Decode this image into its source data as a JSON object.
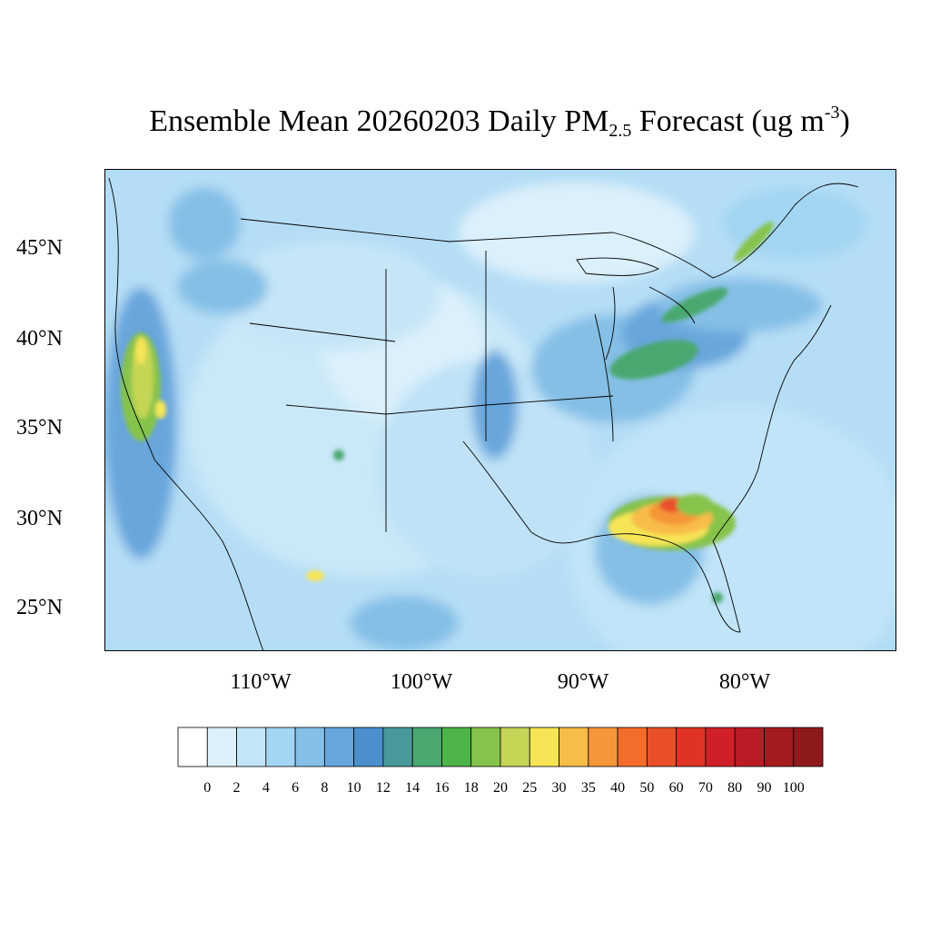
{
  "title": {
    "prefix": "Ensemble Mean 20260203 Daily PM",
    "subscript": "2.5",
    "middle": " Forecast (ug m",
    "superscript": "-3",
    "suffix": ")"
  },
  "lat_labels": [
    "45°N",
    "40°N",
    "35°N",
    "30°N",
    "25°N"
  ],
  "lon_labels": [
    "110°W",
    "100°W",
    "90°W",
    "80°W"
  ],
  "colorbar": {
    "labels": [
      "0",
      "2",
      "4",
      "6",
      "8",
      "10",
      "12",
      "14",
      "16",
      "18",
      "20",
      "25",
      "30",
      "35",
      "40",
      "50",
      "60",
      "70",
      "80",
      "90",
      "100"
    ],
    "colors": [
      "#ffffff",
      "#def1fb",
      "#c2e5f8",
      "#a3d6f3",
      "#85bfe6",
      "#67a6dc",
      "#4b8fcc",
      "#49999b",
      "#48a870",
      "#4db448",
      "#86c34c",
      "#c5d555",
      "#f7e556",
      "#f8bc48",
      "#f69539",
      "#f36c2b",
      "#e94f2a",
      "#df3326",
      "#d02027",
      "#bb1b24",
      "#a51a1f",
      "#8e1a1c"
    ]
  },
  "map": {
    "background_color": "#a8daf5",
    "land_base_color": "#c6e6f8"
  }
}
